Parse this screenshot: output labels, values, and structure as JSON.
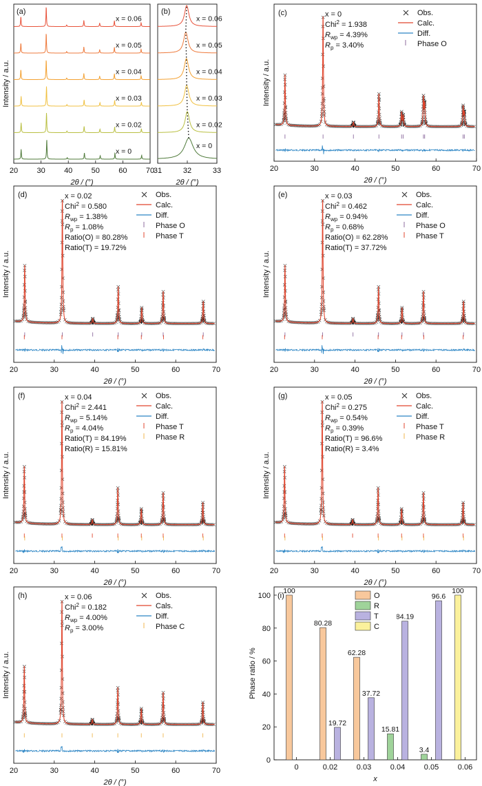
{
  "colors": {
    "obs": "#222222",
    "calc": "#e0442c",
    "diff": "#2a84c4",
    "ticks_o": "#8c6b9e",
    "ticks_t": "#e0442c",
    "ticks_r": "#f0b64c",
    "ticks_c": "#f0b64c",
    "stack": [
      "#4f7a3a",
      "#b9bf41",
      "#f0c040",
      "#f3a030",
      "#ee7a3c",
      "#e8523a"
    ],
    "bar_O": "#f8c89c",
    "bar_R": "#9fd39a",
    "bar_T": "#b9b2e0",
    "bar_C": "#fbf19c"
  },
  "chart_data": [
    {
      "type": "line",
      "panel": "(a)",
      "xlabel": "2θ / (°)",
      "ylabel": "Intensity / a.u.",
      "xlim": [
        20,
        70
      ],
      "xticks": [
        20,
        30,
        40,
        50,
        60,
        70
      ],
      "series": [
        {
          "name": "x = 0",
          "peaks": [
            22.7,
            32.1,
            39.6,
            45.9,
            51.7,
            57.1,
            66.9
          ],
          "rel_intensity": [
            0.5,
            1.0,
            0.08,
            0.32,
            0.18,
            0.3,
            0.2
          ]
        },
        {
          "name": "x = 0.02",
          "peaks": [
            22.7,
            32.0,
            39.5,
            45.8,
            51.6,
            57.0,
            66.8
          ],
          "rel_intensity": [
            0.5,
            1.0,
            0.08,
            0.32,
            0.18,
            0.3,
            0.2
          ]
        },
        {
          "name": "x = 0.03",
          "peaks": [
            22.7,
            32.0,
            39.5,
            45.8,
            51.6,
            57.0,
            66.8
          ],
          "rel_intensity": [
            0.5,
            1.0,
            0.08,
            0.32,
            0.18,
            0.3,
            0.2
          ]
        },
        {
          "name": "x = 0.04",
          "peaks": [
            22.6,
            31.9,
            39.4,
            45.7,
            51.5,
            56.9,
            66.7
          ],
          "rel_intensity": [
            0.5,
            1.0,
            0.08,
            0.32,
            0.18,
            0.3,
            0.2
          ]
        },
        {
          "name": "x = 0.05",
          "peaks": [
            22.6,
            31.9,
            39.4,
            45.7,
            51.5,
            56.9,
            66.7
          ],
          "rel_intensity": [
            0.5,
            1.0,
            0.08,
            0.32,
            0.18,
            0.3,
            0.2
          ]
        },
        {
          "name": "x = 0.06",
          "peaks": [
            22.6,
            31.9,
            39.4,
            45.7,
            51.5,
            56.9,
            66.7
          ],
          "rel_intensity": [
            0.5,
            1.0,
            0.08,
            0.32,
            0.18,
            0.3,
            0.2
          ]
        }
      ]
    },
    {
      "type": "line",
      "panel": "(b)",
      "xlabel": "2θ / (°)",
      "xlim": [
        31,
        33
      ],
      "xticks": [
        31,
        32,
        33
      ],
      "series": [
        {
          "name": "x = 0",
          "peak": 32.05,
          "width": 0.18
        },
        {
          "name": "x = 0.02",
          "peak": 32.0,
          "width": 0.09
        },
        {
          "name": "x = 0.03",
          "peak": 31.98,
          "width": 0.09
        },
        {
          "name": "x = 0.04",
          "peak": 31.97,
          "width": 0.09
        },
        {
          "name": "x = 0.05",
          "peak": 31.95,
          "width": 0.09
        },
        {
          "name": "x = 0.06",
          "peak": 31.98,
          "width": 0.09
        }
      ]
    },
    {
      "type": "scatter",
      "panel": "(c)",
      "xlabel": "2θ / (°)",
      "ylabel": "Intensity / a.u.",
      "xlim": [
        20,
        70
      ],
      "xticks": [
        20,
        30,
        40,
        50,
        60,
        70
      ],
      "stats": [
        {
          "label": "x = 0"
        },
        {
          "label": "Chi",
          "sup": "2",
          "value": " = 1.938"
        },
        {
          "label": "R",
          "sub": "wp",
          "value": " = 4.39%"
        },
        {
          "label": "R",
          "sub": "p",
          "value": " = 3.40%"
        }
      ],
      "legend": [
        "Obs.",
        "Calc.",
        "Diff.",
        "Phase O"
      ],
      "tick_rows": [
        [
          22.7,
          32.1,
          39.6,
          45.9,
          51.5,
          51.9,
          56.9,
          57.2,
          66.7,
          67.0
        ]
      ]
    },
    {
      "type": "scatter",
      "panel": "(d)",
      "xlabel": "2θ / (°)",
      "ylabel": "Intensity / a.u.",
      "xlim": [
        20,
        70
      ],
      "xticks": [
        20,
        30,
        40,
        50,
        60,
        70
      ],
      "stats": [
        {
          "label": "x = 0.02"
        },
        {
          "label": "Chi",
          "sup": "2",
          "value": " = 0.580"
        },
        {
          "label": "R",
          "sub": "wp",
          "value": " = 1.38%"
        },
        {
          "label": "R",
          "sub": "p",
          "value": " = 1.08%"
        },
        {
          "label": "Ratio(O) = 80.28%"
        },
        {
          "label": "Ratio(T) = 19.72%"
        }
      ],
      "legend": [
        "Obs.",
        "Calc.",
        "Diff.",
        "Phase O",
        "Phase T"
      ],
      "tick_rows": [
        [
          22.7,
          32.0,
          39.5,
          45.8,
          51.6,
          56.9,
          66.8
        ],
        [
          22.6,
          31.9,
          45.7,
          51.5,
          57.0,
          66.7
        ]
      ]
    },
    {
      "type": "scatter",
      "panel": "(e)",
      "xlabel": "2θ / (°)",
      "ylabel": "Intensity / a.u.",
      "xlim": [
        20,
        70
      ],
      "xticks": [
        20,
        30,
        40,
        50,
        60,
        70
      ],
      "stats": [
        {
          "label": "x = 0.03"
        },
        {
          "label": "Chi",
          "sup": "2",
          "value": " = 0.462"
        },
        {
          "label": "R",
          "sub": "wp",
          "value": " = 0.94%"
        },
        {
          "label": "R",
          "sub": "p",
          "value": " = 0.68%"
        },
        {
          "label": "Ratio(O) = 62.28%"
        },
        {
          "label": "Ratio(T) = 37.72%"
        }
      ],
      "legend": [
        "Obs.",
        "Calc.",
        "Diff.",
        "Phase O",
        "Phase T"
      ],
      "tick_rows": [
        [
          22.7,
          32.0,
          39.5,
          45.8,
          51.6,
          56.9,
          66.8
        ],
        [
          22.6,
          31.9,
          45.7,
          51.5,
          57.0,
          66.7
        ]
      ]
    },
    {
      "type": "scatter",
      "panel": "(f)",
      "xlabel": "2θ / (°)",
      "ylabel": "Intensity / a.u.",
      "xlim": [
        20,
        70
      ],
      "xticks": [
        20,
        30,
        40,
        50,
        60,
        70
      ],
      "stats": [
        {
          "label": "x = 0.04"
        },
        {
          "label": "Chi",
          "sup": "2",
          "value": " = 2.441"
        },
        {
          "label": "R",
          "sub": "wp",
          "value": " = 5.14%"
        },
        {
          "label": "R",
          "sub": "p",
          "value": " = 4.04%"
        },
        {
          "label": "Ratio(T) = 84.19%"
        },
        {
          "label": "Ratio(R) = 15.81%"
        }
      ],
      "legend": [
        "Obs.",
        "Calc.",
        "Diff.",
        "Phase T",
        "Phase R"
      ],
      "tick_rows": [
        [
          22.6,
          31.9,
          39.4,
          45.7,
          51.5,
          56.9,
          66.7
        ],
        [
          22.7,
          32.0,
          45.8,
          51.6,
          57.0,
          66.8
        ]
      ]
    },
    {
      "type": "scatter",
      "panel": "(g)",
      "xlabel": "2θ / (°)",
      "ylabel": "Intensity / a.u.",
      "xlim": [
        20,
        70
      ],
      "xticks": [
        20,
        30,
        40,
        50,
        60,
        70
      ],
      "stats": [
        {
          "label": "x = 0.05"
        },
        {
          "label": "Chi",
          "sup": "2",
          "value": " = 0.275"
        },
        {
          "label": "R",
          "sub": "wp",
          "value": " = 0.54%"
        },
        {
          "label": "R",
          "sub": "p",
          "value": " = 0.39%"
        },
        {
          "label": "Ratio(T) = 96.6%"
        },
        {
          "label": "Ratio(R) = 3.4%"
        }
      ],
      "legend": [
        "Obs.",
        "Calc.",
        "Diff.",
        "Phase T",
        "Phase R"
      ],
      "tick_rows": [
        [
          22.6,
          31.9,
          39.4,
          45.7,
          51.5,
          56.9,
          66.7
        ],
        [
          22.7,
          32.0,
          45.8,
          51.6,
          57.0,
          66.8
        ]
      ]
    },
    {
      "type": "scatter",
      "panel": "(h)",
      "xlabel": "2θ / (°)",
      "ylabel": "Intensity / a.u.",
      "xlim": [
        20,
        70
      ],
      "xticks": [
        20,
        30,
        40,
        50,
        60,
        70
      ],
      "stats": [
        {
          "label": "x = 0.06"
        },
        {
          "label": "Chi",
          "sup": "2",
          "value": " = 0.182"
        },
        {
          "label": "R",
          "sub": "wp",
          "value": " = 4.00%"
        },
        {
          "label": "R",
          "sub": "p",
          "value": " = 3.00%"
        }
      ],
      "legend": [
        "Obs.",
        "Cals.",
        "Diff.",
        "Phase C"
      ],
      "tick_rows": [
        [
          22.6,
          31.9,
          39.4,
          45.7,
          51.5,
          56.9,
          66.7
        ]
      ]
    },
    {
      "type": "bar",
      "panel": "(i)",
      "xlabel": "x",
      "ylabel": "Phase ratio / %",
      "ylim": [
        0,
        105
      ],
      "yticks": [
        0,
        20,
        40,
        60,
        80,
        100
      ],
      "categories": [
        "0",
        "0.02",
        "0.03",
        "0.04",
        "0.05",
        "0.06"
      ],
      "series": [
        {
          "name": "O",
          "values": [
            100,
            80.28,
            62.28,
            0,
            0,
            0
          ]
        },
        {
          "name": "R",
          "values": [
            0,
            0,
            0,
            15.81,
            3.4,
            0
          ]
        },
        {
          "name": "T",
          "values": [
            0,
            19.72,
            37.72,
            84.19,
            96.6,
            0
          ]
        },
        {
          "name": "C",
          "values": [
            0,
            0,
            0,
            0,
            0,
            100
          ]
        }
      ],
      "data_labels": [
        "100",
        "80.28",
        "19.72",
        "62.28",
        "37.72",
        "15.81",
        "84.19",
        "3.4",
        "96.6",
        "100"
      ],
      "legend_position": "top-center"
    }
  ]
}
